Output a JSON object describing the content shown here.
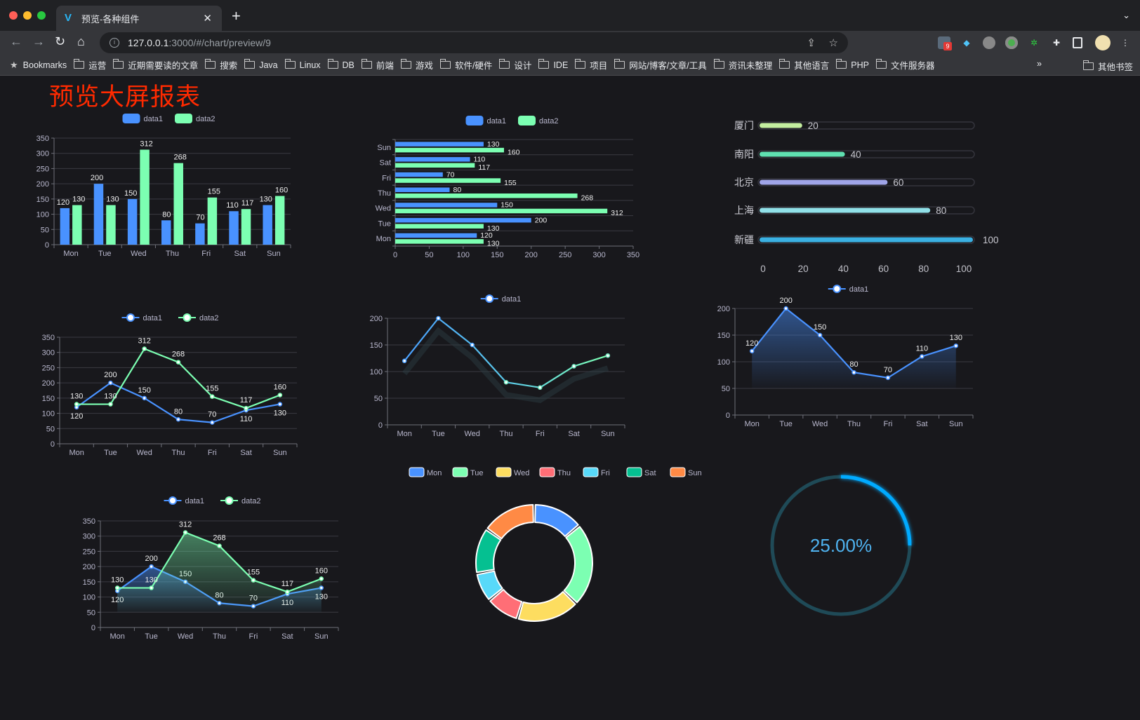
{
  "browser": {
    "tab_title": "预览-各种组件",
    "url_host": "127.0.0.1",
    "url_rest": ":3000/#/chart/preview/9",
    "extension_badge": "9",
    "bookmarks": [
      "Bookmarks",
      "运营",
      "近期需要读的文章",
      "搜索",
      "Java",
      "Linux",
      "DB",
      "前端",
      "游戏",
      "软件/硬件",
      "设计",
      "IDE",
      "项目",
      "网站/博客/文章/工具",
      "资讯未整理",
      "其他语言",
      "PHP",
      "文件服务器"
    ],
    "overflow": "»",
    "other_bookmarks": "其他书签"
  },
  "page": {
    "title": "预览大屏报表",
    "title_color": "#ff2a00",
    "background": "#18181c"
  },
  "colors": {
    "data1": "#4992ff",
    "data2": "#7cffb2"
  },
  "chart_data": [
    {
      "type": "bar",
      "orientation": "vertical",
      "legend": [
        "data1",
        "data2"
      ],
      "categories": [
        "Mon",
        "Tue",
        "Wed",
        "Thu",
        "Fri",
        "Sat",
        "Sun"
      ],
      "series": [
        {
          "name": "data1",
          "values": [
            120,
            200,
            150,
            80,
            70,
            110,
            130
          ]
        },
        {
          "name": "data2",
          "values": [
            130,
            130,
            312,
            268,
            155,
            117,
            160
          ]
        }
      ],
      "ylim": [
        0,
        350
      ],
      "yticks": [
        0,
        50,
        100,
        150,
        200,
        250,
        300,
        350
      ],
      "grid": true,
      "legend_position": "top"
    },
    {
      "type": "bar",
      "orientation": "horizontal",
      "legend": [
        "data1",
        "data2"
      ],
      "categories": [
        "Mon",
        "Tue",
        "Wed",
        "Thu",
        "Fri",
        "Sat",
        "Sun"
      ],
      "series": [
        {
          "name": "data1",
          "values": [
            120,
            200,
            150,
            80,
            70,
            110,
            130
          ]
        },
        {
          "name": "data2",
          "values": [
            130,
            130,
            312,
            268,
            155,
            117,
            160
          ]
        }
      ],
      "xlim": [
        0,
        350
      ],
      "xticks": [
        0,
        50,
        100,
        150,
        200,
        250,
        300,
        350
      ],
      "grid": true,
      "legend_position": "top"
    },
    {
      "type": "bar",
      "orientation": "horizontal-progress",
      "categories": [
        "厦门",
        "南阳",
        "北京",
        "上海",
        "新疆"
      ],
      "values": [
        20,
        40,
        60,
        80,
        100
      ],
      "xlim": [
        0,
        100
      ],
      "xticks": [
        0,
        20,
        40,
        60,
        80,
        100
      ],
      "colors": [
        "#c4eea0",
        "#5fe0b0",
        "#9fa4e8",
        "#90e0e8",
        "#3ab0e2"
      ]
    },
    {
      "type": "line",
      "legend": [
        "data1",
        "data2"
      ],
      "categories": [
        "Mon",
        "Tue",
        "Wed",
        "Thu",
        "Fri",
        "Sat",
        "Sun"
      ],
      "series": [
        {
          "name": "data1",
          "values": [
            120,
            200,
            150,
            80,
            70,
            110,
            130
          ]
        },
        {
          "name": "data2",
          "values": [
            130,
            130,
            312,
            268,
            155,
            117,
            160
          ]
        }
      ],
      "ylim": [
        0,
        350
      ],
      "yticks": [
        0,
        50,
        100,
        150,
        200,
        250,
        300,
        350
      ],
      "grid": true,
      "legend_position": "top"
    },
    {
      "type": "line",
      "legend": [
        "data1"
      ],
      "categories": [
        "Mon",
        "Tue",
        "Wed",
        "Thu",
        "Fri",
        "Sat",
        "Sun"
      ],
      "series": [
        {
          "name": "data1",
          "values": [
            120,
            200,
            150,
            80,
            70,
            110,
            130
          ]
        }
      ],
      "ylim": [
        0,
        200
      ],
      "yticks": [
        0,
        50,
        100,
        150,
        200
      ],
      "grid": true,
      "gradient_line": true,
      "show_labels": false,
      "legend_position": "top"
    },
    {
      "type": "area",
      "legend": [
        "data1"
      ],
      "categories": [
        "Mon",
        "Tue",
        "Wed",
        "Thu",
        "Fri",
        "Sat",
        "Sun"
      ],
      "series": [
        {
          "name": "data1",
          "values": [
            120,
            200,
            150,
            80,
            70,
            110,
            130
          ]
        }
      ],
      "ylim": [
        0,
        200
      ],
      "yticks": [
        0,
        50,
        100,
        150,
        200
      ],
      "grid": true,
      "legend_position": "top"
    },
    {
      "type": "pie",
      "variant": "donut",
      "legend": [
        "Mon",
        "Tue",
        "Wed",
        "Thu",
        "Fri",
        "Sat",
        "Sun"
      ],
      "values": [
        120,
        200,
        150,
        80,
        70,
        110,
        130
      ],
      "colors": [
        "#4992ff",
        "#7cffb2",
        "#fddd60",
        "#ff6e76",
        "#58d9f9",
        "#05c091",
        "#ff8a45"
      ],
      "legend_position": "top"
    },
    {
      "type": "area",
      "legend": [
        "data1",
        "data2"
      ],
      "categories": [
        "Mon",
        "Tue",
        "Wed",
        "Thu",
        "Fri",
        "Sat",
        "Sun"
      ],
      "series": [
        {
          "name": "data1",
          "values": [
            120,
            200,
            150,
            80,
            70,
            110,
            130
          ]
        },
        {
          "name": "data2",
          "values": [
            130,
            130,
            312,
            268,
            155,
            117,
            160
          ]
        }
      ],
      "ylim": [
        0,
        350
      ],
      "yticks": [
        0,
        50,
        100,
        150,
        200,
        250,
        300,
        350
      ],
      "grid": true,
      "legend_position": "top"
    },
    {
      "type": "gauge",
      "variant": "ring",
      "value": 25,
      "label": "25.00%",
      "color": "#00aaff",
      "track_color": "#1f4a57"
    }
  ]
}
